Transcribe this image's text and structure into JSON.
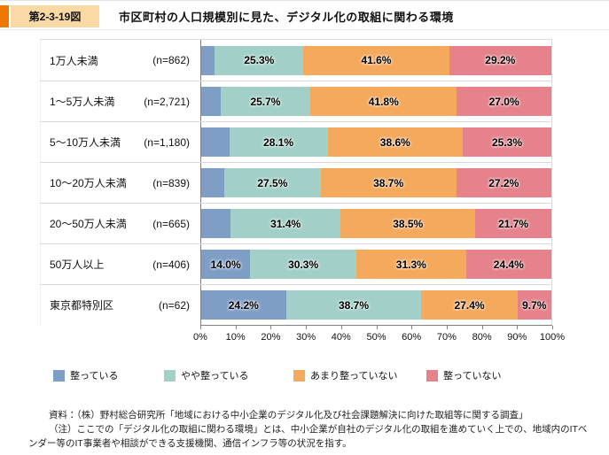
{
  "header": {
    "figure_label": "第2-3-19図",
    "title": "市区町村の人口規模別に見た、デジタル化の取組に関わる環境"
  },
  "chart_data": {
    "type": "bar",
    "stacked": true,
    "orientation": "horizontal",
    "categories": [
      "1万人未満",
      "1～5万人未満",
      "5～10万人未満",
      "10～20万人未満",
      "20～50万人未満",
      "50万人以上",
      "東京都特別区"
    ],
    "sample_sizes": [
      "(n=862)",
      "(n=2,721)",
      "(n=1,180)",
      "(n=839)",
      "(n=665)",
      "(n=406)",
      "(n=62)"
    ],
    "series": [
      {
        "name": "整っている",
        "color": "#7f9ec6",
        "values": [
          3.9,
          5.5,
          8.0,
          6.6,
          8.4,
          14.0,
          24.2
        ],
        "labels": [
          "",
          "",
          "",
          "",
          "",
          "14.0%",
          "24.2%"
        ]
      },
      {
        "name": "やや整っている",
        "color": "#a2d0c9",
        "values": [
          25.3,
          25.7,
          28.1,
          27.5,
          31.4,
          30.3,
          38.7
        ],
        "labels": [
          "25.3%",
          "25.7%",
          "28.1%",
          "27.5%",
          "31.4%",
          "30.3%",
          "38.7%"
        ]
      },
      {
        "name": "あまり整っていない",
        "color": "#f4a95c",
        "values": [
          41.6,
          41.8,
          38.6,
          38.7,
          38.5,
          31.3,
          27.4
        ],
        "labels": [
          "41.6%",
          "41.8%",
          "38.6%",
          "38.7%",
          "38.5%",
          "31.3%",
          "27.4%"
        ]
      },
      {
        "name": "整っていない",
        "color": "#e5828b",
        "values": [
          29.2,
          27.0,
          25.3,
          27.2,
          21.7,
          24.4,
          9.7
        ],
        "labels": [
          "29.2%",
          "27.0%",
          "25.3%",
          "27.2%",
          "21.7%",
          "24.4%",
          "9.7%"
        ]
      }
    ],
    "x_ticks": [
      "0%",
      "10%",
      "20%",
      "30%",
      "40%",
      "50%",
      "60%",
      "70%",
      "80%",
      "90%",
      "100%"
    ],
    "xlim": [
      0,
      100
    ],
    "grid": false,
    "legend_position": "bottom"
  },
  "footnote": {
    "source": "資料：（株）野村総合研究所「地域における中小企業のデジタル化及び社会課題解決に向けた取組等に関する調査」",
    "note": "（注）ここでの「デジタル化の取組に関わる環境」とは、中小企業が自社のデジタル化の取組を進めていく上での、地域内のITベンダー等のIT事業者や相談ができる支援機関、通信インフラ等の状況を指す。"
  }
}
